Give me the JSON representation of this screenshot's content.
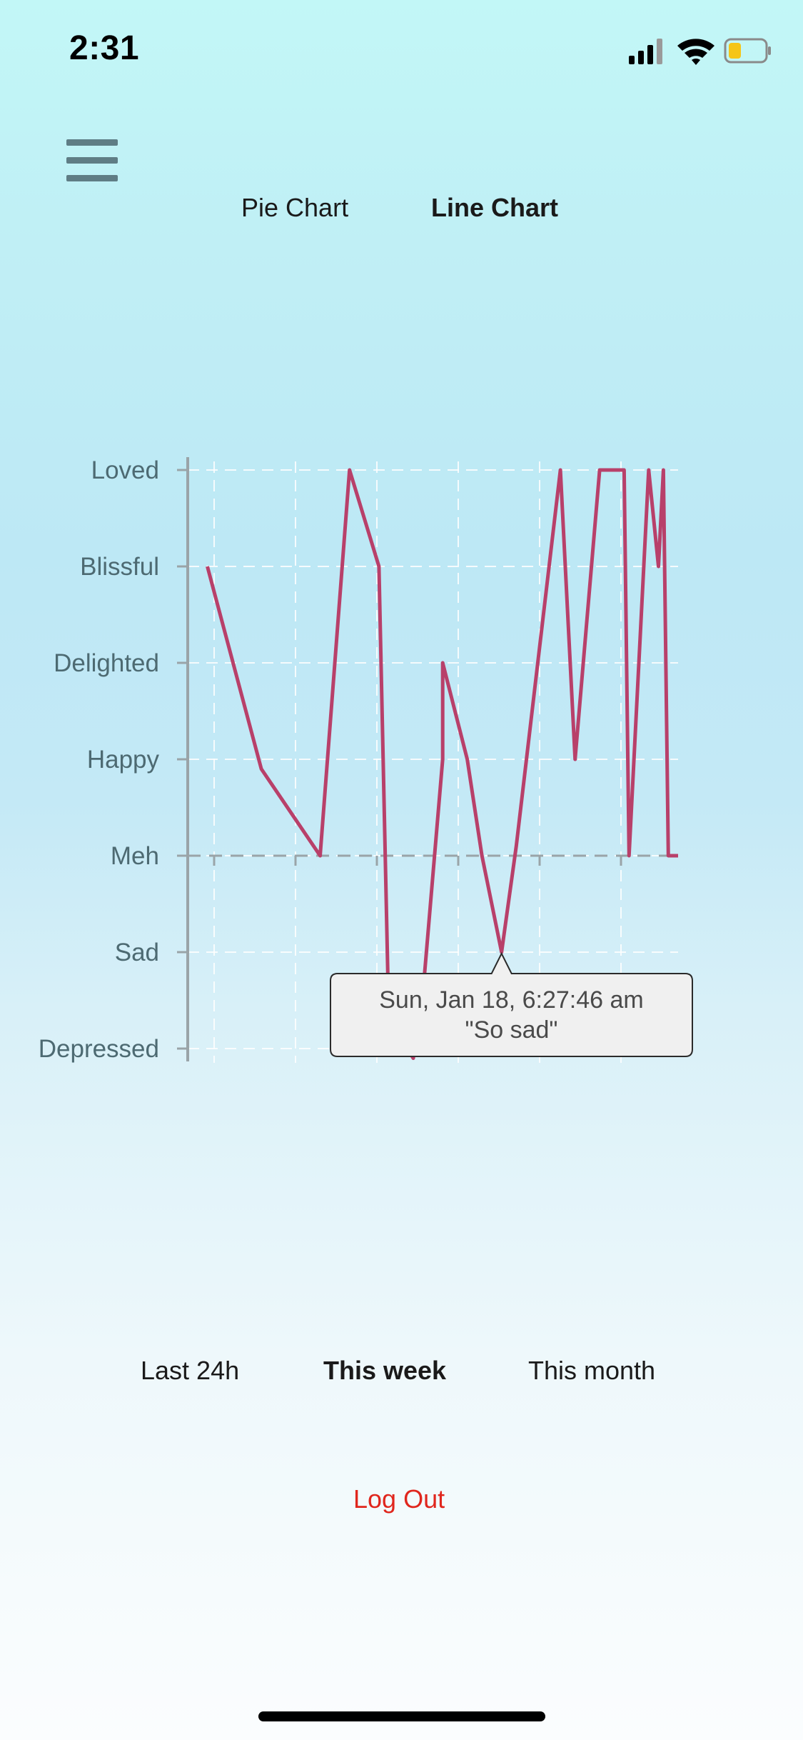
{
  "status_bar": {
    "time": "2:31"
  },
  "tabs": {
    "pie": "Pie Chart",
    "line": "Line Chart"
  },
  "ranges": {
    "last_24h": "Last 24h",
    "this_week": "This week",
    "this_month": "This month"
  },
  "logout": "Log Out",
  "colors": {
    "line": "#b8406a",
    "logout": "#e0261d",
    "axis": "#9aa4a8",
    "label": "#4d6a72"
  },
  "tooltip": {
    "date": "Sun, Jan 18, 6:27:46 am",
    "note": "\"So sad\""
  },
  "chart_data": {
    "type": "line",
    "y_categories": [
      "Depressed",
      "Sad",
      "Meh",
      "Happy",
      "Delighted",
      "Blissful",
      "Loved"
    ],
    "x_ticks": 6,
    "grid": true,
    "series": [
      {
        "x": [
          0.04,
          0.15,
          0.27,
          0.33,
          0.39,
          0.41,
          0.46,
          0.48,
          0.52,
          0.52,
          0.57,
          0.6,
          0.64,
          0.67,
          0.76,
          0.79,
          0.84,
          0.86,
          0.89,
          0.9,
          0.94,
          0.96,
          0.97,
          0.98,
          0.99,
          1.0
        ],
        "y": [
          5,
          2.9,
          2,
          6,
          5,
          0.3,
          -0.1,
          0.6,
          3,
          4,
          3,
          2,
          1,
          2.1,
          6,
          3,
          6,
          6,
          6,
          2,
          6,
          5,
          6,
          2,
          2,
          2
        ]
      }
    ]
  }
}
